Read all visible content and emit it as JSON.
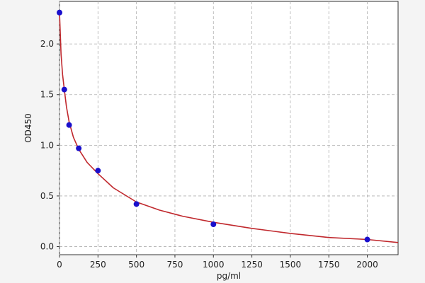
{
  "chart_data": {
    "type": "scatter",
    "title": "",
    "xlabel": "pg/ml",
    "ylabel": "OD450",
    "xlim": [
      0,
      2200
    ],
    "ylim": [
      -0.08,
      2.42
    ],
    "x_ticks": [
      0,
      250,
      500,
      750,
      1000,
      1250,
      1500,
      1750,
      2000
    ],
    "y_ticks": [
      0.0,
      0.5,
      1.0,
      1.5,
      2.0
    ],
    "x_tick_labels": [
      "0",
      "250",
      "500",
      "750",
      "1000",
      "1250",
      "1500",
      "1750",
      "2000"
    ],
    "y_tick_labels": [
      "0.0",
      "0.5",
      "1.0",
      "1.5",
      "2.0"
    ],
    "grid": true,
    "series": [
      {
        "kind": "points",
        "color": "#1a0fcc",
        "x": [
          0,
          31.25,
          62.5,
          125,
          250,
          500,
          1000,
          2000
        ],
        "y": [
          2.31,
          1.55,
          1.2,
          0.97,
          0.75,
          0.42,
          0.22,
          0.07
        ]
      },
      {
        "kind": "fit-curve",
        "color": "#c0282d",
        "x": [
          0,
          10,
          20,
          31.25,
          45,
          62.5,
          90,
          125,
          180,
          250,
          350,
          500,
          650,
          800,
          1000,
          1250,
          1500,
          1750,
          2000,
          2200
        ],
        "y": [
          2.31,
          1.9,
          1.7,
          1.55,
          1.38,
          1.23,
          1.08,
          0.96,
          0.83,
          0.72,
          0.58,
          0.44,
          0.36,
          0.3,
          0.24,
          0.18,
          0.13,
          0.09,
          0.07,
          0.04
        ]
      }
    ]
  }
}
